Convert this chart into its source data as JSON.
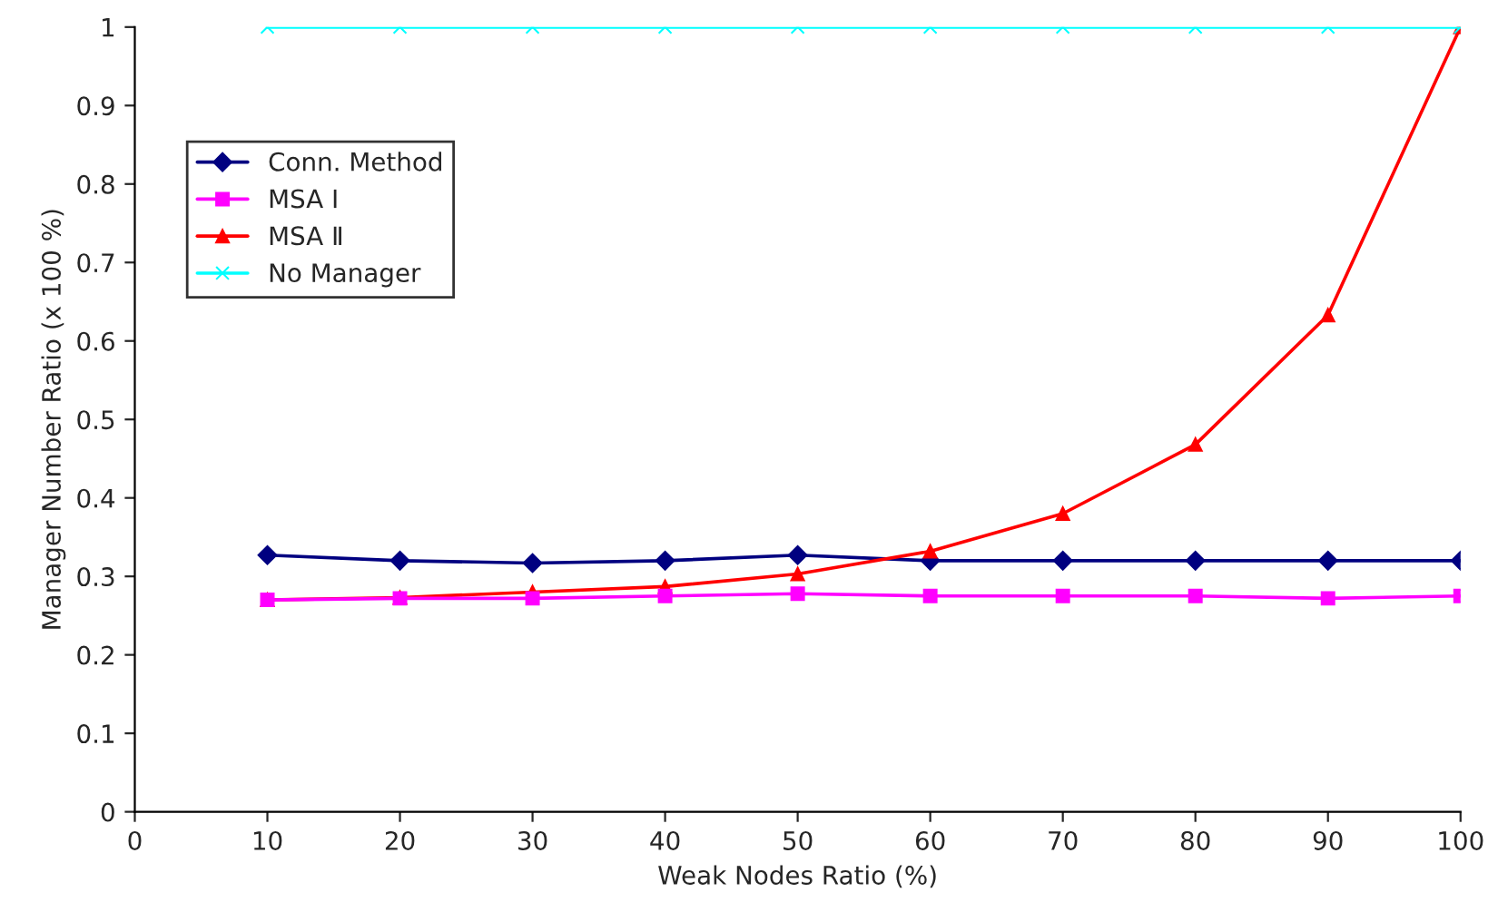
{
  "chart_data": {
    "type": "line",
    "xlabel": "Weak Nodes Ratio (%)",
    "ylabel": "Manager Number Ratio (x 100 %)",
    "x": [
      10,
      20,
      30,
      40,
      50,
      60,
      70,
      80,
      90,
      100
    ],
    "xlim": [
      0,
      100
    ],
    "xticks": [
      0,
      10,
      20,
      30,
      40,
      50,
      60,
      70,
      80,
      90,
      100
    ],
    "ylim": [
      0,
      1
    ],
    "yticks": [
      0,
      0.1,
      0.2,
      0.3,
      0.4,
      0.5,
      0.6,
      0.7,
      0.8,
      0.9,
      1
    ],
    "grid": false,
    "legend": "top left",
    "line_style": "solid",
    "series": [
      {
        "name": "Conn. Method",
        "color": "#000080",
        "marker": "diamond",
        "values": [
          0.327,
          0.32,
          0.317,
          0.32,
          0.327,
          0.32,
          0.32,
          0.32,
          0.32,
          0.32
        ]
      },
      {
        "name": "MSA Ⅰ",
        "color": "#ff00ff",
        "marker": "square",
        "values": [
          0.27,
          0.272,
          0.272,
          0.275,
          0.278,
          0.275,
          0.275,
          0.275,
          0.272,
          0.275
        ]
      },
      {
        "name": "MSA Ⅱ",
        "color": "#ff0000",
        "marker": "triangle",
        "values": [
          0.27,
          0.273,
          0.28,
          0.287,
          0.303,
          0.332,
          0.38,
          0.468,
          0.633,
          1.0
        ]
      },
      {
        "name": "No Manager",
        "color": "#00ffff",
        "marker": "cross",
        "values": [
          1,
          1,
          1,
          1,
          1,
          1,
          1,
          1,
          1,
          1
        ]
      }
    ]
  }
}
